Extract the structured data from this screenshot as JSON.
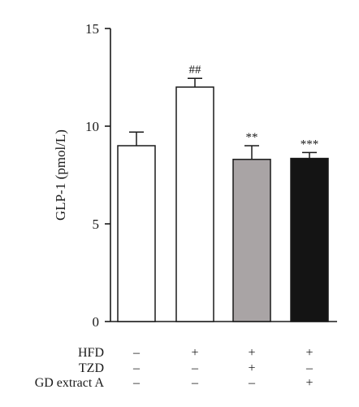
{
  "chart_data": {
    "type": "bar",
    "ylabel": "GLP-1 (pmol/L)",
    "ylim": [
      0,
      15
    ],
    "yticks": [
      "0",
      "5",
      "10",
      "15"
    ],
    "grid": false,
    "bars": [
      {
        "value": 9.0,
        "error": 0.7,
        "annotation": "",
        "fill": "#ffffff"
      },
      {
        "value": 12.0,
        "error": 0.45,
        "annotation": "##",
        "fill": "#ffffff"
      },
      {
        "value": 8.3,
        "error": 0.7,
        "annotation": "**",
        "fill": "#a9a4a5"
      },
      {
        "value": 8.35,
        "error": 0.3,
        "annotation": "***",
        "fill": "#141414"
      }
    ],
    "conditions": [
      {
        "label": "HFD",
        "marks": [
          "–",
          "+",
          "+",
          "+"
        ]
      },
      {
        "label": "TZD",
        "marks": [
          "–",
          "–",
          "+",
          "–"
        ]
      },
      {
        "label": "GD extract A",
        "marks": [
          "–",
          "–",
          "–",
          "+"
        ]
      }
    ]
  },
  "colors": {
    "axis": "#1a1a1a",
    "bar_stroke": "#1a1a1a"
  }
}
